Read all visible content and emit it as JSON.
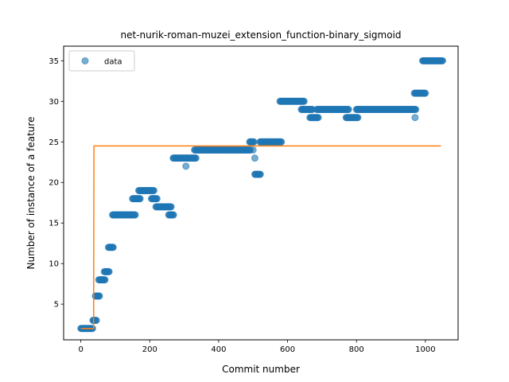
{
  "chart_data": {
    "type": "scatter",
    "title": "net-nurik-roman-muzei_extension_function-binary_sigmoid",
    "xlabel": "Commit number",
    "ylabel": "Number of instance of a feature",
    "xlim": [
      -50,
      1095
    ],
    "ylim": [
      0.6,
      36.8
    ],
    "xticks": [
      0,
      200,
      400,
      600,
      800,
      1000
    ],
    "yticks": [
      5,
      10,
      15,
      20,
      25,
      30,
      35
    ],
    "xtick_labels": [
      "0",
      "200",
      "400",
      "600",
      "800",
      "1000"
    ],
    "ytick_labels": [
      "5",
      "10",
      "15",
      "20",
      "25",
      "30",
      "35"
    ],
    "legend": {
      "position": "top-left",
      "entries": [
        "data"
      ]
    },
    "grid": false,
    "colors": {
      "data": "#1f77b4",
      "fit": "#ff7f0e"
    },
    "series": [
      {
        "name": "data",
        "kind": "scatter",
        "segments": [
          {
            "x_start": 0,
            "x_end": 35,
            "step": 2,
            "y": 2
          },
          {
            "x_start": 35,
            "x_end": 45,
            "step": 2,
            "y": 3
          },
          {
            "x_start": 42,
            "x_end": 55,
            "step": 2,
            "y": 6
          },
          {
            "x_start": 52,
            "x_end": 70,
            "step": 2,
            "y": 8
          },
          {
            "x_start": 68,
            "x_end": 82,
            "step": 2,
            "y": 9
          },
          {
            "x_start": 80,
            "x_end": 95,
            "step": 2,
            "y": 12
          },
          {
            "x_start": 92,
            "x_end": 158,
            "step": 2,
            "y": 16
          },
          {
            "x_start": 150,
            "x_end": 172,
            "step": 2,
            "y": 18
          },
          {
            "x_start": 168,
            "x_end": 212,
            "step": 2,
            "y": 19
          },
          {
            "x_start": 205,
            "x_end": 222,
            "step": 2,
            "y": 18
          },
          {
            "x_start": 218,
            "x_end": 262,
            "step": 2,
            "y": 17
          },
          {
            "x_start": 255,
            "x_end": 270,
            "step": 2,
            "y": 16
          },
          {
            "x_start": 268,
            "x_end": 335,
            "step": 2,
            "y": 23
          },
          {
            "x_start": 330,
            "x_end": 492,
            "step": 2,
            "y": 24
          },
          {
            "x_start": 490,
            "x_end": 502,
            "step": 2,
            "y": 25
          },
          {
            "x_start": 505,
            "x_end": 522,
            "step": 2,
            "y": 21
          },
          {
            "x_start": 520,
            "x_end": 582,
            "step": 2,
            "y": 25
          },
          {
            "x_start": 578,
            "x_end": 648,
            "step": 2,
            "y": 30
          },
          {
            "x_start": 640,
            "x_end": 672,
            "step": 2,
            "y": 29
          },
          {
            "x_start": 665,
            "x_end": 690,
            "step": 2,
            "y": 28
          },
          {
            "x_start": 685,
            "x_end": 778,
            "step": 2,
            "y": 29
          },
          {
            "x_start": 770,
            "x_end": 805,
            "step": 2,
            "y": 28
          },
          {
            "x_start": 800,
            "x_end": 972,
            "step": 2,
            "y": 29
          },
          {
            "x_start": 968,
            "x_end": 1000,
            "step": 2,
            "y": 31
          },
          {
            "x_start": 992,
            "x_end": 1050,
            "step": 2,
            "y": 35
          }
        ],
        "extra_points": [
          {
            "x": 305,
            "y": 22
          },
          {
            "x": 500,
            "y": 24
          },
          {
            "x": 505,
            "y": 23
          },
          {
            "x": 970,
            "y": 28
          }
        ]
      },
      {
        "kind": "line",
        "points": [
          [
            0,
            2
          ],
          [
            37,
            2
          ],
          [
            38,
            24.5
          ],
          [
            1045,
            24.5
          ]
        ]
      }
    ]
  }
}
